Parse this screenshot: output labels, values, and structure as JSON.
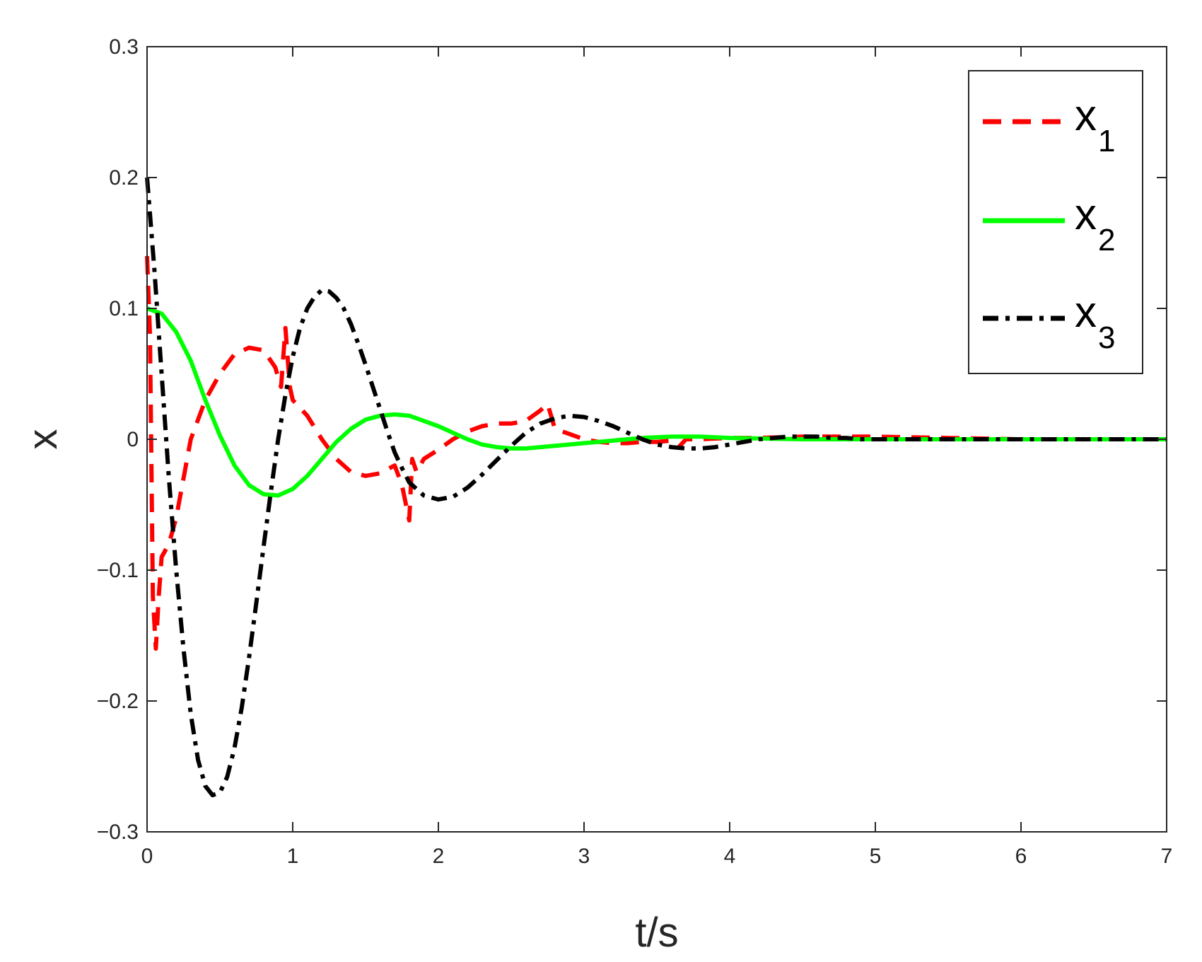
{
  "chart_data": {
    "type": "line",
    "title": "",
    "xlabel": "t/s",
    "ylabel": "x",
    "xlim": [
      0,
      7
    ],
    "ylim": [
      -0.3,
      0.3
    ],
    "x_ticks": [
      0,
      1,
      2,
      3,
      4,
      5,
      6,
      7
    ],
    "x_tick_labels": [
      "0",
      "1",
      "2",
      "3",
      "4",
      "5",
      "6",
      "7"
    ],
    "y_ticks": [
      -0.3,
      -0.2,
      -0.1,
      0,
      0.1,
      0.2,
      0.3
    ],
    "y_tick_labels": [
      "−0.3",
      "−0.2",
      "−0.1",
      "0",
      "0.1",
      "0.2",
      "0.3"
    ],
    "grid": false,
    "legend_position": "top-right",
    "series": [
      {
        "name": "x",
        "subscript": "1",
        "color": "#ff0000",
        "style": "dashed",
        "x": [
          0,
          0.02,
          0.04,
          0.06,
          0.08,
          0.1,
          0.15,
          0.2,
          0.3,
          0.4,
          0.5,
          0.6,
          0.7,
          0.8,
          0.88,
          0.92,
          0.95,
          0.98,
          1.0,
          1.1,
          1.2,
          1.3,
          1.4,
          1.5,
          1.6,
          1.7,
          1.75,
          1.8,
          1.82,
          1.85,
          1.9,
          2.0,
          2.1,
          2.2,
          2.3,
          2.4,
          2.5,
          2.6,
          2.7,
          2.75,
          2.8,
          2.9,
          3.0,
          3.1,
          3.2,
          3.3,
          3.4,
          3.5,
          3.6,
          3.65,
          3.7,
          3.8,
          4.0,
          4.2,
          4.5,
          5.0,
          5.5,
          6.0,
          7.0
        ],
        "y": [
          0.14,
          0.08,
          -0.12,
          -0.16,
          -0.12,
          -0.09,
          -0.08,
          -0.06,
          0.0,
          0.03,
          0.05,
          0.065,
          0.07,
          0.068,
          0.055,
          0.04,
          0.085,
          0.04,
          0.03,
          0.018,
          0.0,
          -0.015,
          -0.025,
          -0.028,
          -0.026,
          -0.02,
          -0.035,
          -0.062,
          -0.015,
          -0.025,
          -0.015,
          -0.008,
          0.0,
          0.006,
          0.01,
          0.012,
          0.012,
          0.014,
          0.022,
          0.027,
          0.008,
          0.004,
          0.0,
          -0.002,
          -0.003,
          -0.003,
          -0.002,
          -0.002,
          -0.001,
          -0.006,
          0.0,
          0.0,
          0.001,
          0.001,
          0.002,
          0.002,
          0.001,
          0.0,
          0.0
        ]
      },
      {
        "name": "x",
        "subscript": "2",
        "color": "#00ff00",
        "style": "solid",
        "x": [
          0,
          0.1,
          0.2,
          0.3,
          0.4,
          0.5,
          0.6,
          0.7,
          0.8,
          0.9,
          1.0,
          1.1,
          1.2,
          1.3,
          1.4,
          1.5,
          1.6,
          1.7,
          1.8,
          1.9,
          2.0,
          2.1,
          2.2,
          2.3,
          2.4,
          2.5,
          2.6,
          2.7,
          2.8,
          2.9,
          3.0,
          3.2,
          3.4,
          3.6,
          3.8,
          4.0,
          4.5,
          5.0,
          5.5,
          6.0,
          7.0
        ],
        "y": [
          0.1,
          0.096,
          0.082,
          0.06,
          0.03,
          0.003,
          -0.02,
          -0.035,
          -0.042,
          -0.043,
          -0.038,
          -0.028,
          -0.015,
          -0.002,
          0.008,
          0.015,
          0.018,
          0.019,
          0.018,
          0.014,
          0.01,
          0.005,
          0.0,
          -0.004,
          -0.006,
          -0.007,
          -0.007,
          -0.006,
          -0.005,
          -0.004,
          -0.003,
          -0.001,
          0.001,
          0.002,
          0.002,
          0.001,
          0.0,
          0.0,
          0.0,
          0.0,
          0.0
        ]
      },
      {
        "name": "x",
        "subscript": "3",
        "color": "#000000",
        "style": "dashdot",
        "x": [
          0,
          0.05,
          0.1,
          0.15,
          0.2,
          0.25,
          0.3,
          0.35,
          0.4,
          0.45,
          0.5,
          0.55,
          0.6,
          0.65,
          0.7,
          0.75,
          0.8,
          0.85,
          0.9,
          0.95,
          1.0,
          1.05,
          1.1,
          1.15,
          1.2,
          1.25,
          1.3,
          1.35,
          1.4,
          1.45,
          1.5,
          1.55,
          1.6,
          1.65,
          1.7,
          1.75,
          1.8,
          1.9,
          2.0,
          2.1,
          2.2,
          2.3,
          2.4,
          2.5,
          2.6,
          2.7,
          2.8,
          2.9,
          3.0,
          3.1,
          3.2,
          3.3,
          3.4,
          3.5,
          3.6,
          3.7,
          3.8,
          3.9,
          4.0,
          4.1,
          4.2,
          4.3,
          4.4,
          4.5,
          4.6,
          4.7,
          4.8,
          4.9,
          5.0,
          5.1,
          5.2,
          5.4,
          5.6,
          5.8,
          6.0,
          6.5,
          7.0
        ],
        "y": [
          0.2,
          0.13,
          0.05,
          -0.03,
          -0.1,
          -0.16,
          -0.21,
          -0.245,
          -0.265,
          -0.272,
          -0.27,
          -0.258,
          -0.236,
          -0.205,
          -0.167,
          -0.125,
          -0.082,
          -0.04,
          0.0,
          0.034,
          0.063,
          0.085,
          0.1,
          0.109,
          0.114,
          0.113,
          0.108,
          0.1,
          0.088,
          0.073,
          0.057,
          0.04,
          0.023,
          0.006,
          -0.01,
          -0.022,
          -0.033,
          -0.043,
          -0.046,
          -0.044,
          -0.037,
          -0.027,
          -0.016,
          -0.005,
          0.005,
          0.012,
          0.016,
          0.018,
          0.017,
          0.014,
          0.01,
          0.005,
          0.0,
          -0.004,
          -0.006,
          -0.007,
          -0.007,
          -0.006,
          -0.004,
          -0.002,
          0.0,
          0.001,
          0.002,
          0.002,
          0.002,
          0.001,
          0.001,
          0.0,
          0.0,
          0.0,
          0.0,
          0.0,
          0.0,
          0.0,
          0.0,
          0.0,
          0.0
        ]
      }
    ]
  }
}
